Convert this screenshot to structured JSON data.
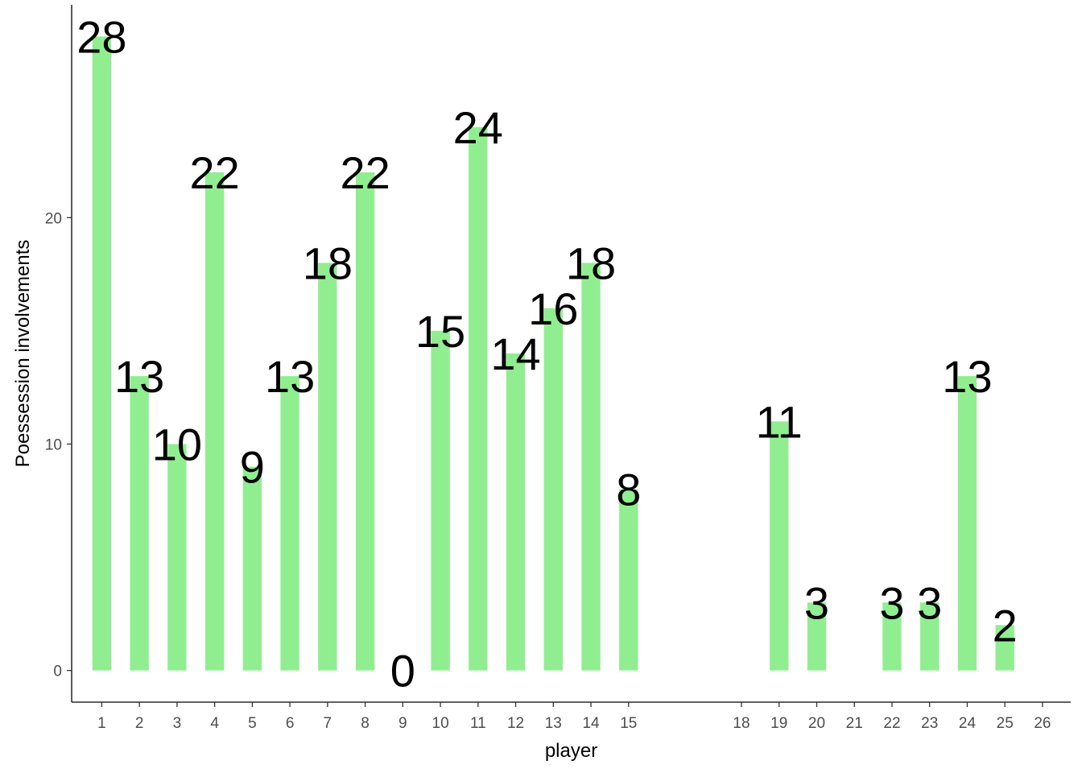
{
  "chart_data": {
    "type": "bar",
    "xlabel": "player",
    "ylabel": "Poessession involvements",
    "ylim": [
      -1.4,
      29.4
    ],
    "yticks": [
      0,
      10,
      20
    ],
    "categories": [
      "1",
      "2",
      "3",
      "4",
      "5",
      "6",
      "7",
      "8",
      "9",
      "10",
      "11",
      "12",
      "13",
      "14",
      "15",
      "18",
      "19",
      "20",
      "21",
      "22",
      "23",
      "24",
      "25",
      "26"
    ],
    "x": [
      1,
      2,
      3,
      4,
      5,
      6,
      7,
      8,
      9,
      10,
      11,
      12,
      13,
      14,
      15,
      18,
      19,
      20,
      21,
      22,
      23,
      24,
      25,
      26
    ],
    "bars": [
      {
        "x": 1,
        "value": 28
      },
      {
        "x": 2,
        "value": 13
      },
      {
        "x": 3,
        "value": 10
      },
      {
        "x": 4,
        "value": 22
      },
      {
        "x": 5,
        "value": 9
      },
      {
        "x": 6,
        "value": 13
      },
      {
        "x": 7,
        "value": 18
      },
      {
        "x": 8,
        "value": 22
      },
      {
        "x": 9,
        "value": 0
      },
      {
        "x": 10,
        "value": 15
      },
      {
        "x": 11,
        "value": 24
      },
      {
        "x": 12,
        "value": 14
      },
      {
        "x": 13,
        "value": 16
      },
      {
        "x": 14,
        "value": 18
      },
      {
        "x": 15,
        "value": 8
      },
      {
        "x": 19,
        "value": 11
      },
      {
        "x": 20,
        "value": 3
      },
      {
        "x": 22,
        "value": 3
      },
      {
        "x": 23,
        "value": 3
      },
      {
        "x": 24,
        "value": 13
      },
      {
        "x": 25,
        "value": 2
      }
    ],
    "bar_color": "#90EE90",
    "grid": false,
    "legend": "none"
  }
}
